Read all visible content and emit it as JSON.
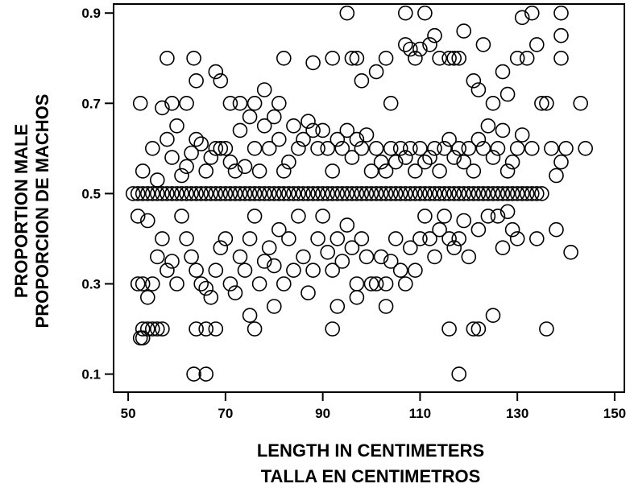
{
  "chart_data": {
    "type": "scatter",
    "xlabel": [
      "LENGTH IN CENTIMETERS",
      "TALLA EN CENTIMETROS"
    ],
    "ylabel": [
      "PROPORTION MALE",
      "PROPORCION DE MACHOS"
    ],
    "xlim": [
      47,
      152
    ],
    "ylim": [
      0.06,
      0.92
    ],
    "xticks": [
      50,
      70,
      90,
      110,
      130,
      150
    ],
    "xtick_labels": [
      "50",
      "70",
      "90",
      "110",
      "130",
      "150"
    ],
    "yticks": [
      0.1,
      0.3,
      0.5,
      0.7,
      0.9
    ],
    "ytick_labels": [
      "0.1",
      "0.3",
      "0.5",
      "0.7",
      "0.9"
    ],
    "grid": false,
    "legend": "none",
    "marker": "open circle",
    "points": [
      [
        51,
        0.5
      ],
      [
        52,
        0.5
      ],
      [
        53,
        0.5
      ],
      [
        54,
        0.5
      ],
      [
        55,
        0.5
      ],
      [
        56,
        0.5
      ],
      [
        57,
        0.5
      ],
      [
        58,
        0.5
      ],
      [
        59,
        0.5
      ],
      [
        60,
        0.5
      ],
      [
        61,
        0.5
      ],
      [
        62,
        0.5
      ],
      [
        63,
        0.5
      ],
      [
        64,
        0.5
      ],
      [
        65,
        0.5
      ],
      [
        66,
        0.5
      ],
      [
        67,
        0.5
      ],
      [
        68,
        0.5
      ],
      [
        69,
        0.5
      ],
      [
        70,
        0.5
      ],
      [
        71,
        0.5
      ],
      [
        72,
        0.5
      ],
      [
        73,
        0.5
      ],
      [
        74,
        0.5
      ],
      [
        75,
        0.5
      ],
      [
        76,
        0.5
      ],
      [
        77,
        0.5
      ],
      [
        78,
        0.5
      ],
      [
        79,
        0.5
      ],
      [
        80,
        0.5
      ],
      [
        81,
        0.5
      ],
      [
        82,
        0.5
      ],
      [
        83,
        0.5
      ],
      [
        84,
        0.5
      ],
      [
        85,
        0.5
      ],
      [
        86,
        0.5
      ],
      [
        87,
        0.5
      ],
      [
        88,
        0.5
      ],
      [
        89,
        0.5
      ],
      [
        90,
        0.5
      ],
      [
        91,
        0.5
      ],
      [
        92,
        0.5
      ],
      [
        93,
        0.5
      ],
      [
        94,
        0.5
      ],
      [
        95,
        0.5
      ],
      [
        96,
        0.5
      ],
      [
        97,
        0.5
      ],
      [
        98,
        0.5
      ],
      [
        99,
        0.5
      ],
      [
        100,
        0.5
      ],
      [
        101,
        0.5
      ],
      [
        102,
        0.5
      ],
      [
        103,
        0.5
      ],
      [
        104,
        0.5
      ],
      [
        105,
        0.5
      ],
      [
        106,
        0.5
      ],
      [
        107,
        0.5
      ],
      [
        108,
        0.5
      ],
      [
        109,
        0.5
      ],
      [
        110,
        0.5
      ],
      [
        111,
        0.5
      ],
      [
        112,
        0.5
      ],
      [
        113,
        0.5
      ],
      [
        114,
        0.5
      ],
      [
        115,
        0.5
      ],
      [
        116,
        0.5
      ],
      [
        117,
        0.5
      ],
      [
        118,
        0.5
      ],
      [
        119,
        0.5
      ],
      [
        120,
        0.5
      ],
      [
        121,
        0.5
      ],
      [
        122,
        0.5
      ],
      [
        123,
        0.5
      ],
      [
        124,
        0.5
      ],
      [
        125,
        0.5
      ],
      [
        126,
        0.5
      ],
      [
        127,
        0.5
      ],
      [
        128,
        0.5
      ],
      [
        129,
        0.5
      ],
      [
        130,
        0.5
      ],
      [
        131,
        0.5
      ],
      [
        132,
        0.5
      ],
      [
        133,
        0.5
      ],
      [
        134,
        0.5
      ],
      [
        135,
        0.5
      ],
      [
        52.5,
        0.18
      ],
      [
        53,
        0.18
      ],
      [
        54,
        0.2
      ],
      [
        55,
        0.2
      ],
      [
        56,
        0.2
      ],
      [
        63.5,
        0.1
      ],
      [
        66,
        0.1
      ],
      [
        64,
        0.2
      ],
      [
        68,
        0.2
      ],
      [
        76,
        0.2
      ],
      [
        92,
        0.2
      ],
      [
        116,
        0.2
      ],
      [
        118,
        0.1
      ],
      [
        121,
        0.2
      ],
      [
        122,
        0.2
      ],
      [
        125,
        0.23
      ],
      [
        136,
        0.2
      ],
      [
        52.5,
        0.7
      ],
      [
        58,
        0.8
      ],
      [
        63.5,
        0.8
      ],
      [
        59,
        0.7
      ],
      [
        62,
        0.7
      ],
      [
        64,
        0.75
      ],
      [
        68,
        0.77
      ],
      [
        69,
        0.75
      ],
      [
        71,
        0.7
      ],
      [
        73,
        0.7
      ],
      [
        76,
        0.7
      ],
      [
        78,
        0.73
      ],
      [
        81,
        0.7
      ],
      [
        82,
        0.8
      ],
      [
        88,
        0.79
      ],
      [
        92,
        0.8
      ],
      [
        95,
        0.9
      ],
      [
        96,
        0.8
      ],
      [
        97,
        0.8
      ],
      [
        98,
        0.75
      ],
      [
        101,
        0.77
      ],
      [
        103,
        0.8
      ],
      [
        104,
        0.7
      ],
      [
        107,
        0.9
      ],
      [
        107,
        0.83
      ],
      [
        108,
        0.82
      ],
      [
        109,
        0.8
      ],
      [
        110,
        0.82
      ],
      [
        111,
        0.9
      ],
      [
        112,
        0.83
      ],
      [
        113,
        0.85
      ],
      [
        114,
        0.8
      ],
      [
        116,
        0.8
      ],
      [
        117,
        0.8
      ],
      [
        118,
        0.8
      ],
      [
        119,
        0.86
      ],
      [
        121,
        0.75
      ],
      [
        122,
        0.73
      ],
      [
        123,
        0.83
      ],
      [
        125,
        0.7
      ],
      [
        127,
        0.77
      ],
      [
        128,
        0.72
      ],
      [
        130,
        0.8
      ],
      [
        131,
        0.89
      ],
      [
        132,
        0.8
      ],
      [
        133,
        0.9
      ],
      [
        134,
        0.83
      ],
      [
        136,
        0.7
      ],
      [
        139,
        0.9
      ],
      [
        139,
        0.85
      ],
      [
        139,
        0.8
      ],
      [
        143,
        0.7
      ],
      [
        52,
        0.45
      ],
      [
        53,
        0.55
      ],
      [
        54,
        0.44
      ],
      [
        55,
        0.6
      ],
      [
        56,
        0.53
      ],
      [
        57,
        0.69
      ],
      [
        58,
        0.62
      ],
      [
        59,
        0.58
      ],
      [
        60,
        0.65
      ],
      [
        61,
        0.54
      ],
      [
        62,
        0.56
      ],
      [
        63,
        0.59
      ],
      [
        64,
        0.62
      ],
      [
        65,
        0.61
      ],
      [
        66,
        0.55
      ],
      [
        67,
        0.58
      ],
      [
        68,
        0.6
      ],
      [
        69,
        0.6
      ],
      [
        70,
        0.6
      ],
      [
        71,
        0.57
      ],
      [
        72,
        0.55
      ],
      [
        73,
        0.64
      ],
      [
        74,
        0.56
      ],
      [
        75,
        0.67
      ],
      [
        76,
        0.6
      ],
      [
        77,
        0.55
      ],
      [
        78,
        0.65
      ],
      [
        79,
        0.6
      ],
      [
        80,
        0.67
      ],
      [
        81,
        0.62
      ],
      [
        82,
        0.55
      ],
      [
        83,
        0.57
      ],
      [
        84,
        0.65
      ],
      [
        85,
        0.6
      ],
      [
        86,
        0.62
      ],
      [
        87,
        0.66
      ],
      [
        88,
        0.64
      ],
      [
        89,
        0.6
      ],
      [
        90,
        0.64
      ],
      [
        91,
        0.6
      ],
      [
        92,
        0.55
      ],
      [
        93,
        0.62
      ],
      [
        94,
        0.6
      ],
      [
        95,
        0.64
      ],
      [
        96,
        0.58
      ],
      [
        97,
        0.62
      ],
      [
        98,
        0.6
      ],
      [
        99,
        0.63
      ],
      [
        100,
        0.55
      ],
      [
        101,
        0.6
      ],
      [
        102,
        0.57
      ],
      [
        103,
        0.55
      ],
      [
        104,
        0.6
      ],
      [
        105,
        0.57
      ],
      [
        106,
        0.6
      ],
      [
        107,
        0.58
      ],
      [
        108,
        0.6
      ],
      [
        109,
        0.55
      ],
      [
        110,
        0.6
      ],
      [
        111,
        0.57
      ],
      [
        112,
        0.58
      ],
      [
        113,
        0.6
      ],
      [
        114,
        0.55
      ],
      [
        115,
        0.6
      ],
      [
        116,
        0.62
      ],
      [
        117,
        0.58
      ],
      [
        118,
        0.6
      ],
      [
        119,
        0.57
      ],
      [
        120,
        0.6
      ],
      [
        121,
        0.55
      ],
      [
        122,
        0.62
      ],
      [
        123,
        0.6
      ],
      [
        124,
        0.65
      ],
      [
        125,
        0.58
      ],
      [
        126,
        0.6
      ],
      [
        127,
        0.64
      ],
      [
        128,
        0.55
      ],
      [
        129,
        0.57
      ],
      [
        130,
        0.6
      ],
      [
        131,
        0.63
      ],
      [
        133,
        0.6
      ],
      [
        135,
        0.7
      ],
      [
        137,
        0.6
      ],
      [
        138,
        0.54
      ],
      [
        139,
        0.57
      ],
      [
        140,
        0.6
      ],
      [
        144,
        0.6
      ],
      [
        52,
        0.3
      ],
      [
        53,
        0.3
      ],
      [
        54,
        0.27
      ],
      [
        55,
        0.3
      ],
      [
        56,
        0.36
      ],
      [
        57,
        0.4
      ],
      [
        58,
        0.33
      ],
      [
        59,
        0.35
      ],
      [
        60,
        0.3
      ],
      [
        61,
        0.45
      ],
      [
        62,
        0.4
      ],
      [
        63,
        0.36
      ],
      [
        64,
        0.33
      ],
      [
        65,
        0.3
      ],
      [
        66,
        0.29
      ],
      [
        67,
        0.27
      ],
      [
        68,
        0.33
      ],
      [
        69,
        0.38
      ],
      [
        70,
        0.4
      ],
      [
        71,
        0.3
      ],
      [
        72,
        0.28
      ],
      [
        73,
        0.36
      ],
      [
        74,
        0.33
      ],
      [
        75,
        0.4
      ],
      [
        76,
        0.45
      ],
      [
        77,
        0.3
      ],
      [
        78,
        0.35
      ],
      [
        79,
        0.38
      ],
      [
        80,
        0.34
      ],
      [
        81,
        0.42
      ],
      [
        82,
        0.3
      ],
      [
        83,
        0.4
      ],
      [
        84,
        0.33
      ],
      [
        85,
        0.45
      ],
      [
        86,
        0.36
      ],
      [
        87,
        0.28
      ],
      [
        88,
        0.33
      ],
      [
        89,
        0.4
      ],
      [
        90,
        0.45
      ],
      [
        91,
        0.37
      ],
      [
        92,
        0.33
      ],
      [
        93,
        0.4
      ],
      [
        94,
        0.35
      ],
      [
        95,
        0.43
      ],
      [
        96,
        0.38
      ],
      [
        97,
        0.3
      ],
      [
        98,
        0.4
      ],
      [
        99,
        0.36
      ],
      [
        100,
        0.3
      ],
      [
        101,
        0.3
      ],
      [
        102,
        0.36
      ],
      [
        103,
        0.3
      ],
      [
        104,
        0.35
      ],
      [
        105,
        0.4
      ],
      [
        106,
        0.33
      ],
      [
        107,
        0.3
      ],
      [
        108,
        0.38
      ],
      [
        109,
        0.33
      ],
      [
        110,
        0.4
      ],
      [
        111,
        0.45
      ],
      [
        112,
        0.4
      ],
      [
        113,
        0.36
      ],
      [
        114,
        0.42
      ],
      [
        115,
        0.45
      ],
      [
        116,
        0.4
      ],
      [
        117,
        0.38
      ],
      [
        118,
        0.4
      ],
      [
        119,
        0.44
      ],
      [
        120,
        0.36
      ],
      [
        122,
        0.42
      ],
      [
        124,
        0.45
      ],
      [
        126,
        0.45
      ],
      [
        127,
        0.38
      ],
      [
        128,
        0.46
      ],
      [
        129,
        0.42
      ],
      [
        130,
        0.4
      ],
      [
        134,
        0.4
      ],
      [
        138,
        0.42
      ],
      [
        141,
        0.37
      ],
      [
        93,
        0.25
      ],
      [
        97,
        0.27
      ],
      [
        103,
        0.25
      ],
      [
        80,
        0.25
      ],
      [
        75,
        0.23
      ],
      [
        66,
        0.2
      ],
      [
        57,
        0.2
      ],
      [
        53,
        0.2
      ]
    ]
  }
}
